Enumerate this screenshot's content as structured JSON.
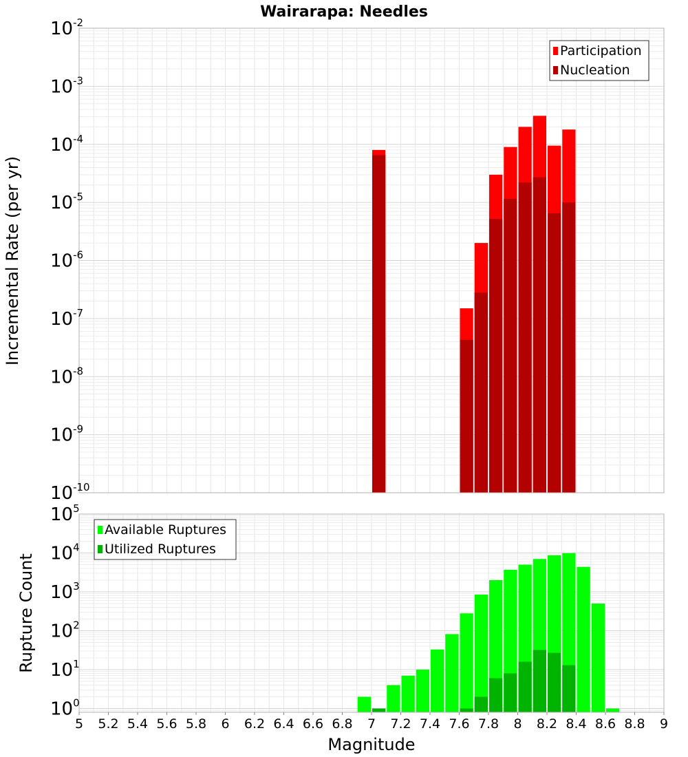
{
  "chart_data": [
    {
      "type": "bar",
      "title": "Wairarapa: Needles",
      "xlabel": "",
      "ylabel": "Incremental Rate (per yr)",
      "yscale": "log",
      "ylim": [
        1e-10,
        0.01
      ],
      "xlim": [
        5,
        9
      ],
      "bin_width": 0.1,
      "grid": true,
      "legend": {
        "position": "top-right"
      },
      "series": [
        {
          "name": "Participation",
          "color": "#ff0000",
          "x": [
            7.05,
            7.65,
            7.75,
            7.85,
            7.95,
            8.05,
            8.15,
            8.25,
            8.35
          ],
          "values": [
            8e-05,
            1.5e-07,
            2e-06,
            3e-05,
            9e-05,
            0.0002,
            0.00031,
            9.5e-05,
            0.00018
          ]
        },
        {
          "name": "Nucleation",
          "color": "#b30000",
          "x": [
            7.05,
            7.65,
            7.75,
            7.85,
            7.95,
            8.05,
            8.15,
            8.25,
            8.35
          ],
          "values": [
            6.5e-05,
            4.3e-08,
            2.8e-07,
            5.2e-06,
            1.15e-05,
            2.2e-05,
            2.7e-05,
            6.5e-06,
            1e-05
          ]
        }
      ]
    },
    {
      "type": "bar",
      "title": "",
      "xlabel": "Magnitude",
      "ylabel": "Rupture Count",
      "yscale": "log",
      "ylim": [
        0.8,
        100000
      ],
      "xlim": [
        5,
        9
      ],
      "bin_width": 0.1,
      "grid": true,
      "legend": {
        "position": "top-left"
      },
      "xticks": [
        "5",
        "5.2",
        "5.4",
        "5.6",
        "5.8",
        "6",
        "6.2",
        "6.4",
        "6.6",
        "6.8",
        "7",
        "7.2",
        "7.4",
        "7.6",
        "7.8",
        "8",
        "8.2",
        "8.4",
        "8.6",
        "8.8",
        "9"
      ],
      "series": [
        {
          "name": "Available Ruptures",
          "color": "#00ff00",
          "x": [
            6.95,
            7.05,
            7.15,
            7.25,
            7.35,
            7.45,
            7.55,
            7.65,
            7.75,
            7.85,
            7.95,
            8.05,
            8.15,
            8.25,
            8.35,
            8.45,
            8.55,
            8.65
          ],
          "values": [
            2,
            1,
            4,
            7,
            10,
            33,
            82,
            280,
            850,
            2000,
            3700,
            5000,
            7000,
            8700,
            9900,
            4400,
            500,
            1
          ]
        },
        {
          "name": "Utilized Ruptures",
          "color": "#00b300",
          "x": [
            7.05,
            7.65,
            7.75,
            7.85,
            7.95,
            8.05,
            8.15,
            8.25,
            8.35
          ],
          "values": [
            1,
            1,
            2,
            6,
            8,
            16,
            32,
            27,
            13
          ]
        }
      ]
    }
  ]
}
